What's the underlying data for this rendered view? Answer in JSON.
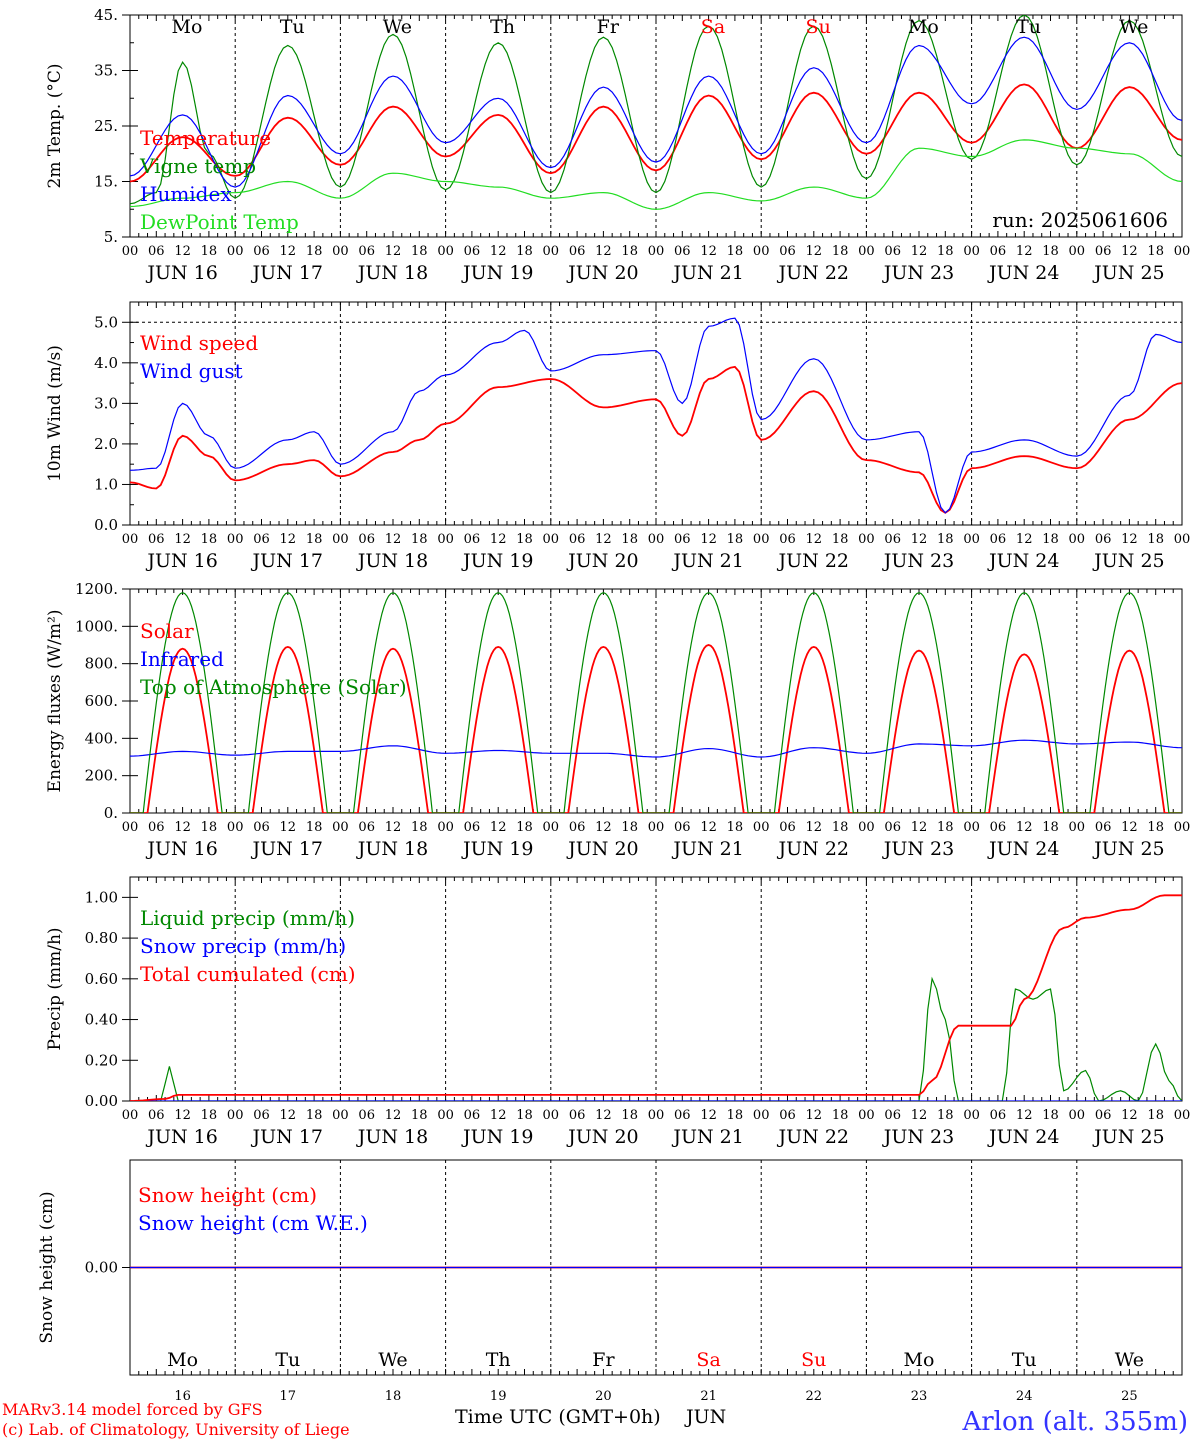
{
  "run_label": "run: 2025061606",
  "footer": {
    "model": "MARv3.14 model forced by GFS",
    "credit": "(c) Lab. of Climatology, University of Liege",
    "xlabel": "Time UTC (GMT+0h)",
    "month": "JUN",
    "station": "Arlon (alt. 355m)"
  },
  "time_labels": [
    "00",
    "06",
    "12",
    "18"
  ],
  "dates": [
    "JUN 16",
    "JUN 17",
    "JUN 18",
    "JUN 19",
    "JUN 20",
    "JUN 21",
    "JUN 22",
    "JUN 23",
    "JUN 24",
    "JUN 25"
  ],
  "weekdays": [
    "Mo",
    "Tu",
    "We",
    "Th",
    "Fr",
    "Sa",
    "Su",
    "Mo",
    "Tu",
    "We"
  ],
  "weekend_color": "#ff0000",
  "day_numbers": [
    "16",
    "17",
    "18",
    "19",
    "20",
    "21",
    "22",
    "23",
    "24",
    "25"
  ],
  "chart_data": [
    {
      "type": "line",
      "ylabel": "2m Temp. (°C)",
      "ylim": [
        5,
        45
      ],
      "yticks": [
        "5.",
        "15.",
        "25.",
        "35.",
        "45."
      ],
      "x_units": "hours since 16 JUN 00 UTC",
      "series": [
        {
          "name": "Temperature",
          "color": "#ff0000",
          "points": [
            [
              0,
              15
            ],
            [
              12,
              23
            ],
            [
              24,
              16
            ],
            [
              36,
              26.5
            ],
            [
              48,
              18
            ],
            [
              60,
              28.5
            ],
            [
              72,
              19.5
            ],
            [
              84,
              27
            ],
            [
              96,
              16.5
            ],
            [
              108,
              28.5
            ],
            [
              120,
              17
            ],
            [
              132,
              30.5
            ],
            [
              144,
              19
            ],
            [
              156,
              31
            ],
            [
              168,
              20
            ],
            [
              180,
              31
            ],
            [
              192,
              22
            ],
            [
              204,
              32.5
            ],
            [
              216,
              21
            ],
            [
              228,
              32
            ],
            [
              240,
              22.5
            ]
          ]
        },
        {
          "name": "Vigne temp",
          "color": "#008800",
          "points": [
            [
              0,
              11
            ],
            [
              6,
              13
            ],
            [
              12,
              36.5
            ],
            [
              18,
              20
            ],
            [
              24,
              12
            ],
            [
              36,
              39.5
            ],
            [
              48,
              14
            ],
            [
              60,
              41.5
            ],
            [
              72,
              13.5
            ],
            [
              84,
              40
            ],
            [
              96,
              13
            ],
            [
              108,
              41
            ],
            [
              120,
              13
            ],
            [
              132,
              43
            ],
            [
              144,
              14
            ],
            [
              156,
              43
            ],
            [
              168,
              15.5
            ],
            [
              180,
              44
            ],
            [
              192,
              19
            ],
            [
              204,
              45
            ],
            [
              216,
              18
            ],
            [
              228,
              44
            ],
            [
              240,
              19.5
            ]
          ]
        },
        {
          "name": "Humidex",
          "color": "#0000ff",
          "points": [
            [
              0,
              16
            ],
            [
              12,
              27
            ],
            [
              24,
              14
            ],
            [
              36,
              30.5
            ],
            [
              48,
              20
            ],
            [
              60,
              34
            ],
            [
              72,
              22
            ],
            [
              84,
              30
            ],
            [
              96,
              17.5
            ],
            [
              108,
              32
            ],
            [
              120,
              18.5
            ],
            [
              132,
              34
            ],
            [
              144,
              20
            ],
            [
              156,
              35.5
            ],
            [
              168,
              22
            ],
            [
              180,
              39.5
            ],
            [
              192,
              29
            ],
            [
              204,
              41
            ],
            [
              216,
              28
            ],
            [
              228,
              40
            ],
            [
              240,
              26
            ]
          ]
        },
        {
          "name": "DewPoint Temp",
          "color": "#22dd22",
          "points": [
            [
              0,
              10.5
            ],
            [
              12,
              12
            ],
            [
              24,
              13
            ],
            [
              36,
              15
            ],
            [
              48,
              12
            ],
            [
              60,
              16.5
            ],
            [
              72,
              15
            ],
            [
              84,
              14
            ],
            [
              96,
              12
            ],
            [
              108,
              13
            ],
            [
              120,
              10
            ],
            [
              132,
              13
            ],
            [
              144,
              11.5
            ],
            [
              156,
              14
            ],
            [
              168,
              12
            ],
            [
              180,
              21
            ],
            [
              192,
              19.5
            ],
            [
              204,
              22.5
            ],
            [
              216,
              21
            ],
            [
              228,
              20
            ],
            [
              240,
              15
            ]
          ]
        }
      ]
    },
    {
      "type": "line",
      "ylabel": "10m Wind (m/s)",
      "ylim": [
        0,
        5.5
      ],
      "yticks": [
        "0.0",
        "1.0",
        "2.0",
        "3.0",
        "4.0",
        "5.0"
      ],
      "x_units": "hours since 16 JUN 00 UTC",
      "series": [
        {
          "name": "Wind speed",
          "color": "#ff0000",
          "points": [
            [
              0,
              1.05
            ],
            [
              6,
              0.9
            ],
            [
              12,
              2.2
            ],
            [
              18,
              1.7
            ],
            [
              24,
              1.1
            ],
            [
              36,
              1.5
            ],
            [
              42,
              1.6
            ],
            [
              48,
              1.2
            ],
            [
              60,
              1.8
            ],
            [
              66,
              2.1
            ],
            [
              72,
              2.5
            ],
            [
              84,
              3.4
            ],
            [
              96,
              3.6
            ],
            [
              108,
              2.9
            ],
            [
              120,
              3.1
            ],
            [
              126,
              2.2
            ],
            [
              132,
              3.6
            ],
            [
              138,
              3.9
            ],
            [
              144,
              2.1
            ],
            [
              156,
              3.3
            ],
            [
              168,
              1.6
            ],
            [
              180,
              1.3
            ],
            [
              186,
              0.3
            ],
            [
              192,
              1.4
            ],
            [
              204,
              1.7
            ],
            [
              216,
              1.4
            ],
            [
              228,
              2.6
            ],
            [
              240,
              3.5
            ]
          ]
        },
        {
          "name": "Wind gust",
          "color": "#0000ff",
          "points": [
            [
              0,
              1.35
            ],
            [
              6,
              1.4
            ],
            [
              12,
              3.0
            ],
            [
              18,
              2.2
            ],
            [
              24,
              1.4
            ],
            [
              36,
              2.1
            ],
            [
              42,
              2.3
            ],
            [
              48,
              1.5
            ],
            [
              60,
              2.3
            ],
            [
              66,
              3.3
            ],
            [
              72,
              3.7
            ],
            [
              84,
              4.5
            ],
            [
              90,
              4.8
            ],
            [
              96,
              3.8
            ],
            [
              108,
              4.2
            ],
            [
              120,
              4.3
            ],
            [
              126,
              3.0
            ],
            [
              132,
              4.9
            ],
            [
              138,
              5.1
            ],
            [
              144,
              2.6
            ],
            [
              156,
              4.1
            ],
            [
              168,
              2.1
            ],
            [
              180,
              2.3
            ],
            [
              186,
              0.3
            ],
            [
              192,
              1.8
            ],
            [
              204,
              2.1
            ],
            [
              216,
              1.7
            ],
            [
              228,
              3.2
            ],
            [
              234,
              4.7
            ],
            [
              240,
              4.5
            ]
          ]
        }
      ]
    },
    {
      "type": "line",
      "ylabel": "Energy fluxes (W/m²)",
      "ylim": [
        0,
        1200
      ],
      "yticks": [
        "0.",
        "200.",
        "400.",
        "600.",
        "800.",
        "1000.",
        "1200."
      ],
      "x_units": "hours since 16 JUN 00 UTC",
      "series": [
        {
          "name": "Solar",
          "color": "#ff0000",
          "daily_peaks": [
            880,
            890,
            880,
            890,
            890,
            900,
            890,
            870,
            850,
            870
          ],
          "sunrise_h": 4,
          "sunset_h": 20
        },
        {
          "name": "Infrared",
          "color": "#0000ff",
          "points": [
            [
              0,
              305
            ],
            [
              12,
              330
            ],
            [
              24,
              310
            ],
            [
              36,
              330
            ],
            [
              48,
              330
            ],
            [
              60,
              360
            ],
            [
              72,
              320
            ],
            [
              84,
              335
            ],
            [
              96,
              320
            ],
            [
              108,
              320
            ],
            [
              120,
              300
            ],
            [
              132,
              345
            ],
            [
              144,
              300
            ],
            [
              156,
              350
            ],
            [
              168,
              320
            ],
            [
              180,
              370
            ],
            [
              192,
              360
            ],
            [
              204,
              390
            ],
            [
              216,
              370
            ],
            [
              228,
              380
            ],
            [
              240,
              350
            ]
          ]
        },
        {
          "name": "Top of Atmosphere (Solar)",
          "color": "#008800",
          "daily_peaks": [
            1180,
            1180,
            1180,
            1180,
            1180,
            1180,
            1180,
            1180,
            1180,
            1180
          ],
          "sunrise_h": 3,
          "sunset_h": 21
        }
      ]
    },
    {
      "type": "line",
      "ylabel": "Precip (mm/h)",
      "ylim": [
        0,
        1.1
      ],
      "yticks": [
        "0.00",
        "0.20",
        "0.40",
        "0.60",
        "0.80",
        "1.00"
      ],
      "x_units": "hours since 16 JUN 00 UTC",
      "series": [
        {
          "name": "Liquid precip (mm/h)",
          "color": "#008800",
          "points": [
            [
              0,
              0
            ],
            [
              7,
              0
            ],
            [
              9,
              0.17
            ],
            [
              11,
              0
            ],
            [
              180,
              0
            ],
            [
              183,
              0.6
            ],
            [
              186,
              0.4
            ],
            [
              189,
              0.0
            ],
            [
              199,
              0
            ],
            [
              202,
              0.55
            ],
            [
              206,
              0.5
            ],
            [
              210,
              0.55
            ],
            [
              213,
              0.05
            ],
            [
              218,
              0.15
            ],
            [
              221,
              0.0
            ],
            [
              226,
              0.05
            ],
            [
              230,
              0
            ],
            [
              234,
              0.28
            ],
            [
              237,
              0.1
            ],
            [
              240,
              0
            ]
          ]
        },
        {
          "name": "Snow precip (mm/h)",
          "color": "#0000ff",
          "points": [
            [
              0,
              0
            ],
            [
              240,
              0
            ]
          ]
        },
        {
          "name": "Total cumulated (cm)",
          "color": "#ff0000",
          "points": [
            [
              0,
              0
            ],
            [
              8,
              0.01
            ],
            [
              11,
              0.03
            ],
            [
              180,
              0.03
            ],
            [
              183,
              0.1
            ],
            [
              189,
              0.37
            ],
            [
              201,
              0.37
            ],
            [
              204,
              0.5
            ],
            [
              213,
              0.85
            ],
            [
              218,
              0.9
            ],
            [
              228,
              0.94
            ],
            [
              236,
              1.01
            ],
            [
              240,
              1.01
            ]
          ]
        }
      ]
    },
    {
      "type": "line",
      "ylabel": "Snow height (cm)",
      "ylim": [
        -1,
        1
      ],
      "yticks": [
        "0.00"
      ],
      "x_units": "hours since 16 JUN 00 UTC",
      "series": [
        {
          "name": "Snow height (cm)",
          "color": "#ff0000",
          "points": [
            [
              0,
              0
            ],
            [
              240,
              0
            ]
          ]
        },
        {
          "name": "Snow height (cm W.E.)",
          "color": "#0000ff",
          "points": [
            [
              0,
              0
            ],
            [
              240,
              0
            ]
          ]
        }
      ]
    }
  ]
}
